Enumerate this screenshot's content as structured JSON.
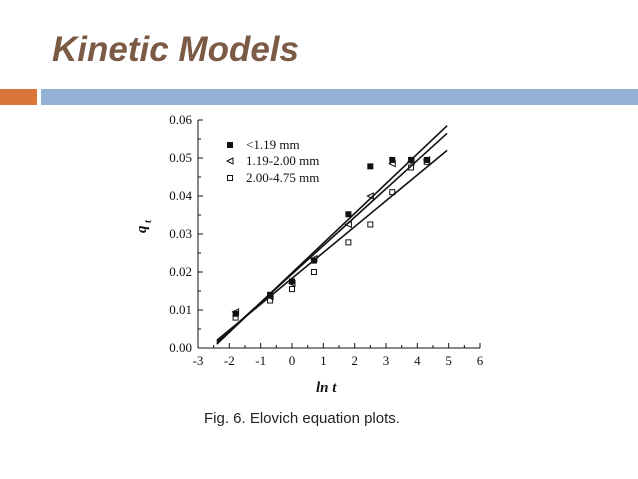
{
  "slide": {
    "title": "Kinetic Models",
    "caption": "Fig. 6. Elovich equation plots.",
    "accent_color": "#d9773b",
    "rule_color": "#93b2d5",
    "title_color": "#7b5a46"
  },
  "chart_data": {
    "type": "scatter",
    "title": "",
    "xlabel": "ln t",
    "ylabel": "q",
    "ylabel_subscript": "t",
    "xlim": [
      -3,
      6
    ],
    "ylim": [
      0,
      0.06
    ],
    "x_ticks": [
      -3,
      -2,
      -1,
      0,
      1,
      2,
      3,
      4,
      5,
      6
    ],
    "x_tick_labels": [
      "-3",
      "-2",
      "-1",
      "0",
      "1",
      "2",
      "3",
      "4",
      "5",
      "6"
    ],
    "y_ticks": [
      0,
      0.01,
      0.02,
      0.03,
      0.04,
      0.05,
      0.06
    ],
    "y_tick_labels": [
      "0.00",
      "0.01",
      "0.02",
      "0.03",
      "0.04",
      "0.05",
      "0.06"
    ],
    "grid": false,
    "legend_position": "top-left",
    "series": [
      {
        "name": "<1.19 mm",
        "marker": "filled-square",
        "points": [
          [
            -1.8,
            0.009
          ],
          [
            -0.7,
            0.014
          ],
          [
            0,
            0.0175
          ],
          [
            0.7,
            0.023
          ],
          [
            1.8,
            0.0352
          ],
          [
            2.5,
            0.0478
          ],
          [
            3.2,
            0.0495
          ],
          [
            3.8,
            0.0495
          ],
          [
            4.3,
            0.0495
          ]
        ],
        "fit_line": [
          [
            -2.4,
            0.001
          ],
          [
            4.95,
            0.0585
          ]
        ]
      },
      {
        "name": "1.19-2.00 mm",
        "marker": "open-triangle",
        "points": [
          [
            -1.8,
            0.0095
          ],
          [
            -0.7,
            0.0135
          ],
          [
            0,
            0.017
          ],
          [
            0.7,
            0.0235
          ],
          [
            1.8,
            0.0325
          ],
          [
            2.5,
            0.04
          ],
          [
            3.2,
            0.0485
          ],
          [
            3.8,
            0.049
          ],
          [
            4.3,
            0.0495
          ]
        ],
        "fit_line": [
          [
            -2.4,
            0.0015
          ],
          [
            4.95,
            0.0565
          ]
        ]
      },
      {
        "name": "2.00-4.75 mm",
        "marker": "open-square",
        "points": [
          [
            -1.8,
            0.008
          ],
          [
            -0.7,
            0.0125
          ],
          [
            0,
            0.0155
          ],
          [
            0.7,
            0.02
          ],
          [
            1.8,
            0.0278
          ],
          [
            2.5,
            0.0325
          ],
          [
            3.2,
            0.041
          ],
          [
            3.8,
            0.0475
          ],
          [
            4.3,
            0.049
          ]
        ],
        "fit_line": [
          [
            -2.4,
            0.002
          ],
          [
            4.95,
            0.052
          ]
        ]
      }
    ]
  }
}
